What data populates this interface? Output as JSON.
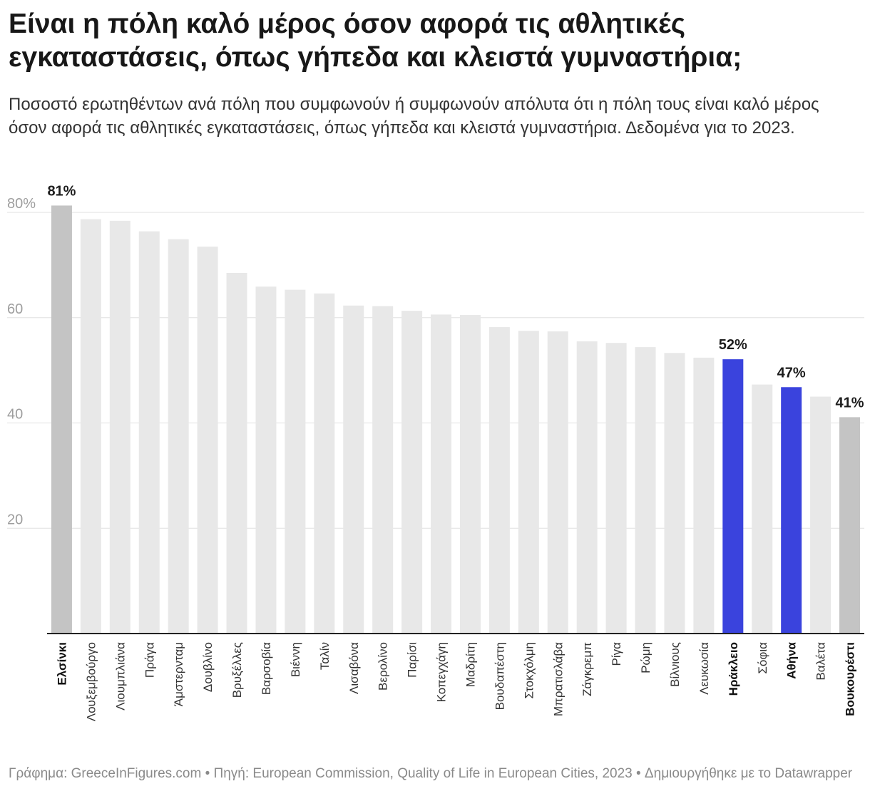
{
  "header": {
    "title": "Είναι η πόλη καλό μέρος όσον αφορά τις αθλητικές εγκαταστάσεις, όπως γήπεδα και κλειστά γυμναστήρια;",
    "subtitle": "Ποσοστό ερωτηθέντων ανά πόλη που συμφωνούν ή συμφωνούν απόλυτα ότι η πόλη τους είναι καλό μέρος όσον αφορά τις αθλητικές εγκαταστάσεις, όπως γήπεδα και κλειστά γυμναστήρια. Δεδομένα για το 2023."
  },
  "chart_data": {
    "type": "bar",
    "ylim": [
      0,
      84
    ],
    "yticks": [
      20,
      40,
      60,
      80
    ],
    "ytick_labels": [
      "20",
      "40",
      "60",
      "80%"
    ],
    "grid": true,
    "categories": [
      "Ελσίνκι",
      "Λουξεμβούργο",
      "Λιουμπλιάνα",
      "Πράγα",
      "Άμστερνταμ",
      "Δουβλίνο",
      "Βρυξέλλες",
      "Βαρσοβία",
      "Βιέννη",
      "Ταλίν",
      "Λισαβόνα",
      "Βερολίνο",
      "Παρίσι",
      "Κοπεγχάγη",
      "Μαδρίτη",
      "Βουδαπέστη",
      "Στοκχόλμη",
      "Μπρατισλάβα",
      "Ζάγκρεμπ",
      "Ρίγα",
      "Ρώμη",
      "Βίλνιους",
      "Λευκωσία",
      "Ηράκλειο",
      "Σόφια",
      "Αθήνα",
      "Βαλέτα",
      "Βουκουρέστι"
    ],
    "values": [
      81.3,
      78.7,
      78.4,
      76.4,
      74.9,
      73.5,
      68.5,
      65.9,
      65.3,
      64.6,
      62.3,
      62.2,
      61.3,
      60.6,
      60.5,
      58.2,
      57.5,
      57.4,
      55.5,
      55.2,
      54.4,
      53.3,
      52.4,
      52.1,
      47.3,
      46.8,
      45.0,
      41.1
    ],
    "highlight": [
      "neutral",
      "normal",
      "normal",
      "normal",
      "normal",
      "normal",
      "normal",
      "normal",
      "normal",
      "normal",
      "normal",
      "normal",
      "normal",
      "normal",
      "normal",
      "normal",
      "normal",
      "normal",
      "normal",
      "normal",
      "normal",
      "normal",
      "normal",
      "accent",
      "normal",
      "accent",
      "normal",
      "neutral"
    ],
    "bold_labels": [
      "Ελσίνκι",
      "Ηράκλειο",
      "Αθήνα",
      "Βουκουρέστι"
    ],
    "data_labels": [
      {
        "category": "Ελσίνκι",
        "text": "81%"
      },
      {
        "category": "Ηράκλειο",
        "text": "52%"
      },
      {
        "category": "Αθήνα",
        "text": "47%"
      },
      {
        "category": "Βουκουρέστι",
        "text": "41%"
      }
    ],
    "colors": {
      "normal": "#e8e8e8",
      "neutral": "#c4c4c4",
      "accent": "#3a43dd",
      "grid": "#e0e0e0",
      "axis": "#222222",
      "tick_text": "#9e9e9e"
    }
  },
  "footer": {
    "text": "Γράφημα: GreeceInFigures.com • Πηγή: European Commission, Quality of Life in European Cities, 2023 • Δημιουργήθηκε με το Datawrapper"
  }
}
